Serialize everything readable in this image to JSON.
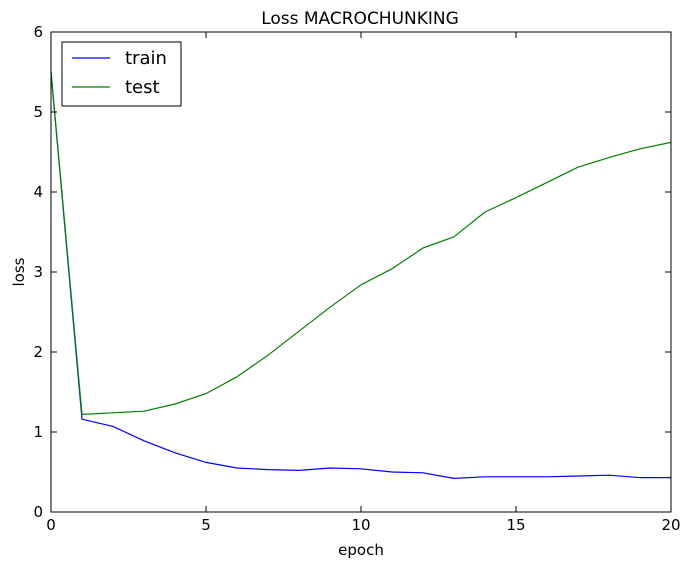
{
  "chart_data": {
    "type": "line",
    "title": "Loss MACROCHUNKING",
    "xlabel": "epoch",
    "ylabel": "loss",
    "xlim": [
      0,
      20
    ],
    "ylim": [
      0,
      6
    ],
    "xticks": [
      0,
      5,
      10,
      15,
      20
    ],
    "yticks": [
      0,
      1,
      2,
      3,
      4,
      5,
      6
    ],
    "xtick_labels": [
      "0",
      "5",
      "10",
      "15",
      "20"
    ],
    "ytick_labels": [
      "0",
      "1",
      "2",
      "3",
      "4",
      "5",
      "6"
    ],
    "grid": false,
    "legend_position": "top-left",
    "x": [
      0,
      1,
      2,
      3,
      4,
      5,
      6,
      7,
      8,
      9,
      10,
      11,
      12,
      13,
      14,
      15,
      16,
      17,
      18,
      19,
      20
    ],
    "series": [
      {
        "name": "train",
        "color": "#0000ff",
        "values": [
          5.5,
          1.16,
          1.07,
          0.89,
          0.74,
          0.62,
          0.55,
          0.53,
          0.52,
          0.55,
          0.54,
          0.5,
          0.49,
          0.42,
          0.44,
          0.44,
          0.44,
          0.45,
          0.46,
          0.43,
          0.43
        ]
      },
      {
        "name": "test",
        "color": "#008000",
        "values": [
          5.5,
          1.22,
          1.24,
          1.26,
          1.35,
          1.48,
          1.69,
          1.96,
          2.26,
          2.56,
          2.84,
          3.04,
          3.3,
          3.44,
          3.75,
          3.93,
          4.12,
          4.31,
          4.43,
          4.54,
          4.62
        ]
      }
    ]
  }
}
